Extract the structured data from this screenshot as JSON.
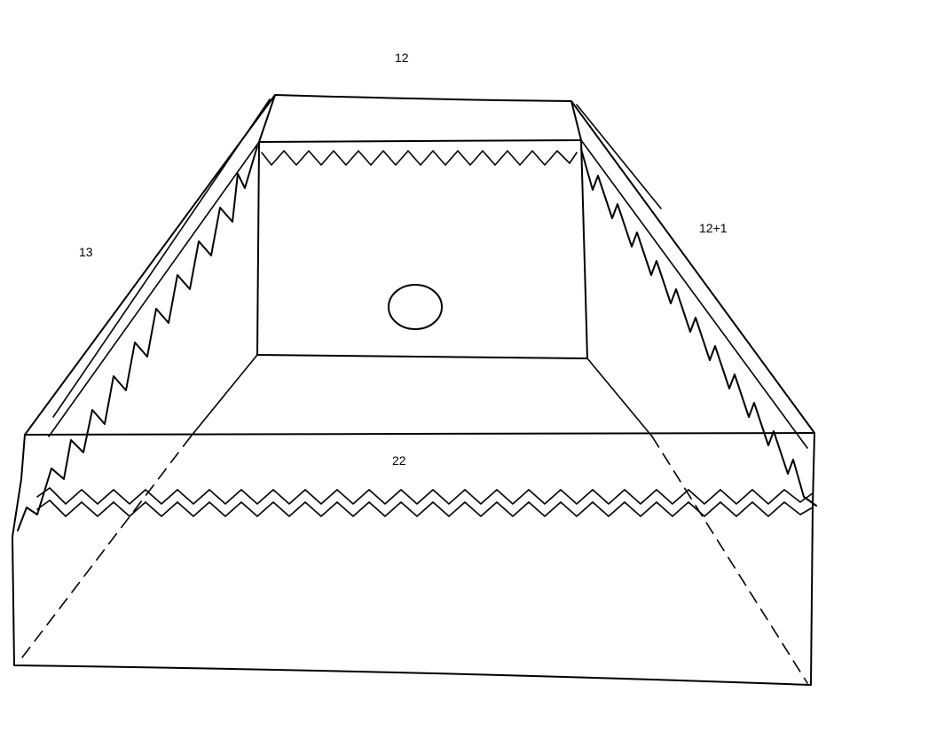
{
  "labels": {
    "top": "12",
    "left": "13",
    "right": "12+1",
    "bottom": "22"
  },
  "colors": {
    "ink": "#000000",
    "paper": "#ffffff"
  }
}
